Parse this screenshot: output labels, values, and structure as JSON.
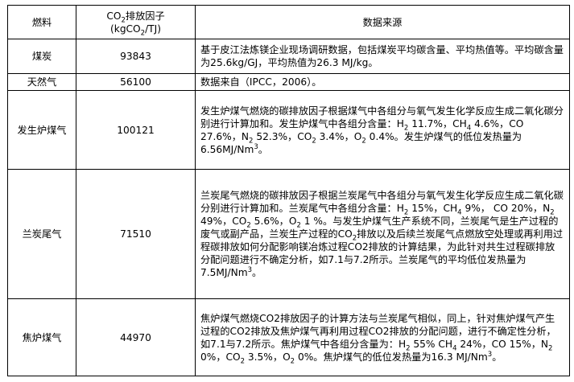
{
  "table": {
    "headers": {
      "fuel": "燃料",
      "factor_line1_pre": "CO",
      "factor_line1_sub": "2",
      "factor_line1_post": "排放因子",
      "factor_line2_pre": "(kgCO",
      "factor_line2_sub": "2",
      "factor_line2_post": "/TJ)",
      "source": "数据来源"
    },
    "rows": [
      {
        "fuel": "煤炭",
        "factor": "93843",
        "source_a": "基于皮江法炼镁企业现场调研数据，包括煤炭平均碳含量、平均热值等。平均碳含量为25.6kg/GJ，平均热值为26.3  MJ/kg。"
      },
      {
        "fuel": "天然气",
        "factor": "56100",
        "source_a": "数据来自（IPCC，2006）。"
      },
      {
        "fuel": "发生炉煤气",
        "factor": "100121",
        "source_a": "发生炉煤气燃烧的碳排放因子根据煤气中各组分与氧气发生化学反应生成二氧化碳分别进行计算加和。发生炉煤气中各组分含量：H",
        "sub_a": "2",
        "source_b": " 11.7%，CH",
        "sub_b": "4",
        "source_c": " 4.6%，CO 27.6%，N",
        "sub_c": "2",
        "source_d": " 52.3%，CO",
        "sub_d": "2",
        "source_e": " 3.4%，O",
        "sub_e": "2",
        "source_f": " 0.4%。发生炉煤气的低位发热量为6.56MJ/Nm",
        "sup_f": "3",
        "source_g": "。"
      },
      {
        "fuel": "兰炭尾气",
        "factor": "71510",
        "source_a": "兰炭尾气燃烧的碳排放因子根据兰炭尾气中各组分与氧气发生化学反应生成二氧化碳分别进行计算加和。兰炭尾气中各组分含量：H",
        "sub_a": "2",
        "source_b": "  15%，CH",
        "sub_b": "4",
        "source_c": "  9%， CO 20%，N",
        "sub_c": "2",
        "source_d": " 49%，CO",
        "sub_d": "2",
        "source_e": " 5.6%，O",
        "sub_e": "2",
        "source_f": " 1 %。与发生炉煤气生产系统不同，兰炭尾气是生产过程的废气或副产品，兰炭生产过程的CO",
        "sub_f": "2",
        "source_g": "排放以及后续兰炭尾气点燃放空处理或再利用过程碳排放如何分配影响镁冶炼过程CO2排放的计算结果，为此针对共生过程碳排放分配问题进行不确定分析，如7.1与7.2所示。兰炭尾气的平均低位发热量为7.5MJ/Nm",
        "sup_g": "3",
        "source_h": "。"
      },
      {
        "fuel": "焦炉煤气",
        "factor": "44970",
        "source_a": "焦炉煤气燃烧CO2排放因子的计算方法与兰炭尾气相似，同上，针对焦炉煤气产生过程的CO2排放及焦炉煤气再利用过程CO2排放的分配问题，进行不确定性分析，如7.1与7.2所示。焦炉煤气中各组分含量为：H",
        "sub_a": "2",
        "source_b": " 55% CH",
        "sub_b": "4",
        "source_c": " 24%，CO 15%，N",
        "sub_c": "2",
        "source_d": " 0%，CO",
        "sub_d": "2",
        "source_e": " 3.5%，O",
        "sub_e": "2",
        "source_f": " 0%。焦炉煤气的低位发热量为16.3 MJ/Nm",
        "sup_f": "3",
        "source_g": "。"
      }
    ]
  }
}
